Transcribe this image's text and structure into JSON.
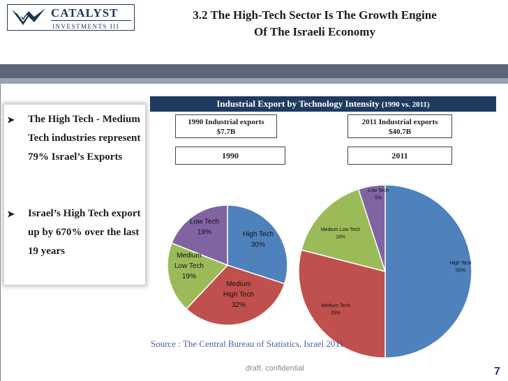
{
  "logo": {
    "name": "CATALYST",
    "subtitle": "INVESTMENTS III"
  },
  "title": {
    "line1": "3.2 The High-Tech Sector Is The Growth Engine",
    "line2": "Of The Israeli Economy"
  },
  "bullets": [
    {
      "text": "The High Tech - Medium Tech industries represent 79% Israel’s Exports"
    },
    {
      "text": "Israel’s High Tech export up by 670% over the last 19 years"
    }
  ],
  "chart_header": {
    "main": "Industrial Export by Technology Intensity",
    "period": "(1990 vs. 2011)"
  },
  "boxes": {
    "exports_1990": {
      "line1": "1990 Industrial exports",
      "line2": "$7.7B"
    },
    "exports_2011": {
      "line1": "2011 Industrial exports",
      "line2": "$40.7B"
    },
    "year_1990": "1990",
    "year_2011": "2011"
  },
  "colors": {
    "high_tech": "#4f81bd",
    "medium_high_tech": "#c0504d",
    "medium_low_tech": "#9bbb59",
    "low_tech": "#8064a2"
  },
  "chart_data": [
    {
      "type": "pie",
      "title": "1990",
      "slices": [
        {
          "label_lines": [
            "High Tech"
          ],
          "value": 30,
          "value_label": "30%",
          "color": "#4f81bd"
        },
        {
          "label_lines": [
            "Medium",
            "High Tech"
          ],
          "value": 32,
          "value_label": "32%",
          "color": "#c0504d"
        },
        {
          "label_lines": [
            "Medium",
            "Low Tech"
          ],
          "value": 19,
          "value_label": "19%",
          "color": "#9bbb59"
        },
        {
          "label_lines": [
            "Low Tech"
          ],
          "value": 19,
          "value_label": "19%",
          "color": "#8064a2"
        }
      ]
    },
    {
      "type": "pie",
      "title": "2011",
      "slices": [
        {
          "label_lines": [
            "High Tech"
          ],
          "value": 50,
          "value_label": "50%",
          "color": "#4f81bd"
        },
        {
          "label_lines": [
            "Medium Tech"
          ],
          "value": 29,
          "value_label": "29%",
          "color": "#c0504d"
        },
        {
          "label_lines": [
            "Medium Low Tech"
          ],
          "value": 16,
          "value_label": "16%",
          "color": "#9bbb59"
        },
        {
          "label_lines": [
            "Low Tech"
          ],
          "value": 5,
          "value_label": "5%",
          "color": "#8064a2"
        }
      ]
    }
  ],
  "source": "Source : The Central Bureau of Statistics, Israel 2011",
  "footer": "draft. confidential",
  "page_number": "7"
}
